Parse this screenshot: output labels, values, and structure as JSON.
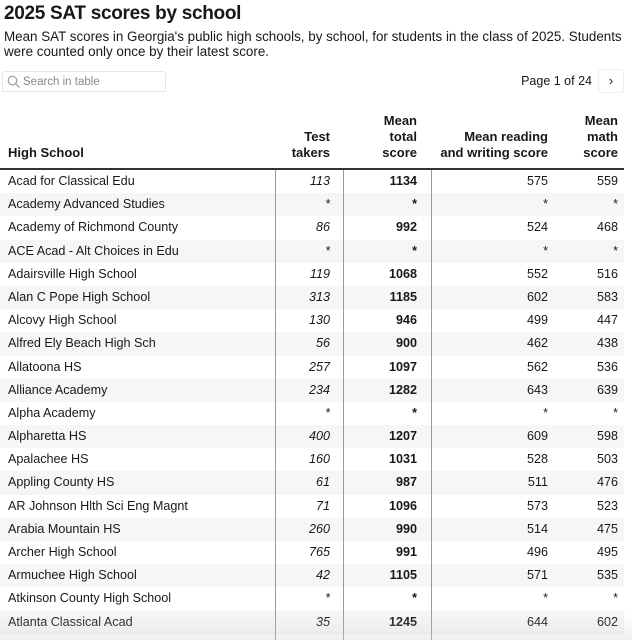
{
  "title": "2025 SAT scores by school",
  "description": "Mean SAT scores in Georgia's public high schools, by school, for students in the class of 2025. Students were counted only once by their latest score.",
  "search": {
    "placeholder": "Search in table",
    "value": ""
  },
  "pagination": {
    "label": "Page 1 of 24",
    "next": "›"
  },
  "columns": [
    {
      "label": "High School"
    },
    {
      "label": "Test takers"
    },
    {
      "label": "Mean total score"
    },
    {
      "label": "Mean reading and writing score"
    },
    {
      "label": "Mean math score"
    }
  ],
  "rows": [
    [
      "Acad for Classical Edu",
      "113",
      "1134",
      "575",
      "559"
    ],
    [
      "Academy Advanced Studies",
      "*",
      "*",
      "*",
      "*"
    ],
    [
      "Academy of Richmond County",
      "86",
      "992",
      "524",
      "468"
    ],
    [
      "ACE Acad - Alt Choices in Edu",
      "*",
      "*",
      "*",
      "*"
    ],
    [
      "Adairsville High School",
      "119",
      "1068",
      "552",
      "516"
    ],
    [
      "Alan C Pope High School",
      "313",
      "1185",
      "602",
      "583"
    ],
    [
      "Alcovy High School",
      "130",
      "946",
      "499",
      "447"
    ],
    [
      "Alfred Ely Beach High Sch",
      "56",
      "900",
      "462",
      "438"
    ],
    [
      "Allatoona HS",
      "257",
      "1097",
      "562",
      "536"
    ],
    [
      "Alliance Academy",
      "234",
      "1282",
      "643",
      "639"
    ],
    [
      "Alpha Academy",
      "*",
      "*",
      "*",
      "*"
    ],
    [
      "Alpharetta HS",
      "400",
      "1207",
      "609",
      "598"
    ],
    [
      "Apalachee HS",
      "160",
      "1031",
      "528",
      "503"
    ],
    [
      "Appling County HS",
      "61",
      "987",
      "511",
      "476"
    ],
    [
      "AR Johnson Hlth Sci Eng Magnt",
      "71",
      "1096",
      "573",
      "523"
    ],
    [
      "Arabia Mountain HS",
      "260",
      "990",
      "514",
      "475"
    ],
    [
      "Archer High School",
      "765",
      "991",
      "496",
      "495"
    ],
    [
      "Armuchee High School",
      "42",
      "1105",
      "571",
      "535"
    ],
    [
      "Atkinson County High School",
      "*",
      "*",
      "*",
      "*"
    ],
    [
      "Atlanta Classical Acad",
      "35",
      "1245",
      "644",
      "602"
    ]
  ]
}
